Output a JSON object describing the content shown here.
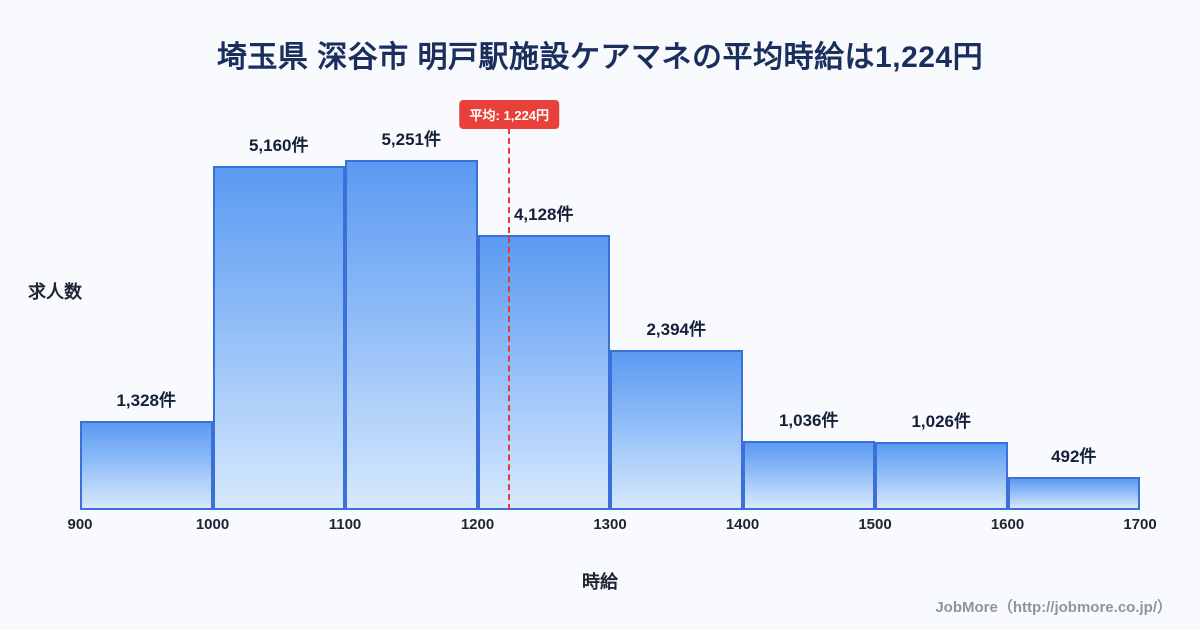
{
  "title": "埼玉県 深谷市 明戸駅施設ケアマネの平均時給は1,224円",
  "footer": "JobMore（http://jobmore.co.jp/）",
  "colors": {
    "background": "#f8fafd",
    "title_text": "#1b2f5e",
    "bar_border": "#3b70d8",
    "bar_gradient_top": "#5b9af2",
    "bar_gradient_bottom": "#d7e9fd",
    "average_line": "#e53935",
    "average_badge_bg": "#e8413c",
    "average_badge_text": "#ffffff",
    "axis_text": "#1e2633",
    "footer_text": "#8d95a3"
  },
  "chart_data": {
    "type": "bar",
    "subtype": "histogram",
    "title": "埼玉県 深谷市 明戸駅施設ケアマネの平均時給は1,224円",
    "xlabel": "時給",
    "ylabel": "求人数",
    "bin_edges": [
      900,
      1000,
      1100,
      1200,
      1300,
      1400,
      1500,
      1600,
      1700
    ],
    "categories": [
      "900-1000",
      "1000-1100",
      "1100-1200",
      "1200-1300",
      "1300-1400",
      "1400-1500",
      "1500-1600",
      "1600-1700"
    ],
    "values": [
      1328,
      5160,
      5251,
      4128,
      2394,
      1036,
      1026,
      492
    ],
    "value_labels": [
      "1,328件",
      "5,160件",
      "5,251件",
      "4,128件",
      "2,394件",
      "1,036件",
      "1,026件",
      "492件"
    ],
    "x_ticks": [
      "900",
      "1000",
      "1100",
      "1200",
      "1300",
      "1400",
      "1500",
      "1600",
      "1700"
    ],
    "xlim": [
      900,
      1700
    ],
    "ylim": [
      0,
      5600
    ],
    "grid": false,
    "legend": false,
    "average": {
      "value": 1224,
      "label": "平均: 1,224円"
    }
  }
}
